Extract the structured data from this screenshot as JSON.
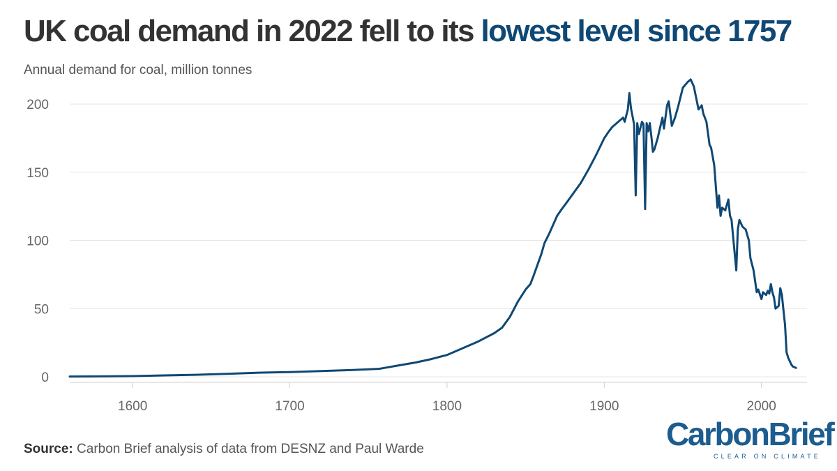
{
  "header": {
    "title_main": "UK coal demand in 2022 fell to its ",
    "title_highlight": "lowest level since 1757",
    "subtitle": "Annual demand for coal, million tonnes"
  },
  "footer": {
    "source_label": "Source:",
    "source_text": " Carbon Brief analysis of data from DESNZ and Paul Warde"
  },
  "logo": {
    "name": "CarbonBrief",
    "tagline": "CLEAR ON CLIMATE"
  },
  "colors": {
    "line": "#0f4874",
    "highlight": "#0f4874",
    "grid": "#e6e6e6"
  },
  "chart_data": {
    "type": "line",
    "title": "UK coal demand in 2022 fell to its lowest level since 1757",
    "ylabel": "Annual demand for coal, million tonnes",
    "xlabel": "",
    "xlim": [
      1560,
      2025
    ],
    "ylim": [
      0,
      220
    ],
    "x_ticks": [
      1600,
      1700,
      1800,
      1900,
      2000
    ],
    "y_ticks": [
      0,
      50,
      100,
      150,
      200
    ],
    "grid": "horizontal",
    "legend": "none",
    "series": [
      {
        "x": [
          1560,
          1580,
          1600,
          1620,
          1640,
          1660,
          1680,
          1700,
          1720,
          1740,
          1750,
          1757,
          1760,
          1770,
          1780,
          1790,
          1800,
          1810,
          1820,
          1830,
          1835,
          1840,
          1845,
          1850,
          1853,
          1855,
          1860,
          1862,
          1865,
          1870,
          1873,
          1875,
          1880,
          1885,
          1890,
          1895,
          1900,
          1903,
          1905,
          1910,
          1912,
          1913,
          1915,
          1916,
          1917,
          1919,
          1920,
          1921,
          1922,
          1924,
          1925,
          1926,
          1927,
          1928,
          1929,
          1930,
          1931,
          1932,
          1934,
          1937,
          1938,
          1940,
          1941,
          1943,
          1945,
          1947,
          1950,
          1953,
          1955,
          1957,
          1960,
          1962,
          1963,
          1965,
          1967,
          1968,
          1970,
          1972,
          1973,
          1974,
          1975,
          1977,
          1979,
          1980,
          1981,
          1984,
          1985,
          1986,
          1988,
          1990,
          1992,
          1993,
          1995,
          1997,
          1998,
          2000,
          2001,
          2003,
          2004,
          2005,
          2006,
          2007,
          2008,
          2009,
          2011,
          2012,
          2013,
          2014,
          2015,
          2016,
          2017,
          2019,
          2020,
          2021,
          2022
        ],
        "y": [
          0.2,
          0.3,
          0.5,
          1.0,
          1.5,
          2.2,
          3.0,
          3.5,
          4.2,
          5.0,
          5.5,
          5.9,
          6.5,
          8.5,
          10.5,
          13.0,
          16.0,
          21.0,
          26.0,
          32.0,
          36.0,
          44.0,
          55.0,
          64.0,
          68.0,
          74.0,
          90.0,
          98.0,
          105.0,
          118.0,
          123.0,
          126.0,
          134.0,
          142.0,
          152.0,
          163.0,
          175.0,
          180.0,
          183.0,
          188.0,
          190.0,
          187.0,
          196.0,
          208.0,
          197.0,
          185.0,
          133.0,
          186.0,
          178.0,
          187.0,
          185.0,
          123.0,
          186.0,
          180.0,
          186.0,
          176.0,
          165.0,
          167.0,
          175.0,
          190.0,
          182.0,
          199.0,
          202.0,
          184.0,
          190.0,
          198.0,
          212.0,
          216.0,
          218.0,
          213.0,
          196.0,
          199.0,
          193.0,
          187.0,
          170.0,
          168.0,
          155.0,
          124.0,
          133.0,
          118.0,
          124.0,
          122.0,
          130.0,
          118.0,
          115.0,
          78.0,
          108.0,
          115.0,
          110.0,
          108.0,
          100.0,
          87.0,
          78.0,
          62.0,
          64.0,
          57.0,
          62.0,
          60.0,
          63.0,
          61.0,
          68.0,
          62.0,
          58.0,
          50.0,
          52.0,
          65.0,
          60.0,
          49.0,
          38.0,
          18.0,
          14.0,
          9.0,
          7.5,
          7.0,
          6.5
        ]
      }
    ]
  }
}
